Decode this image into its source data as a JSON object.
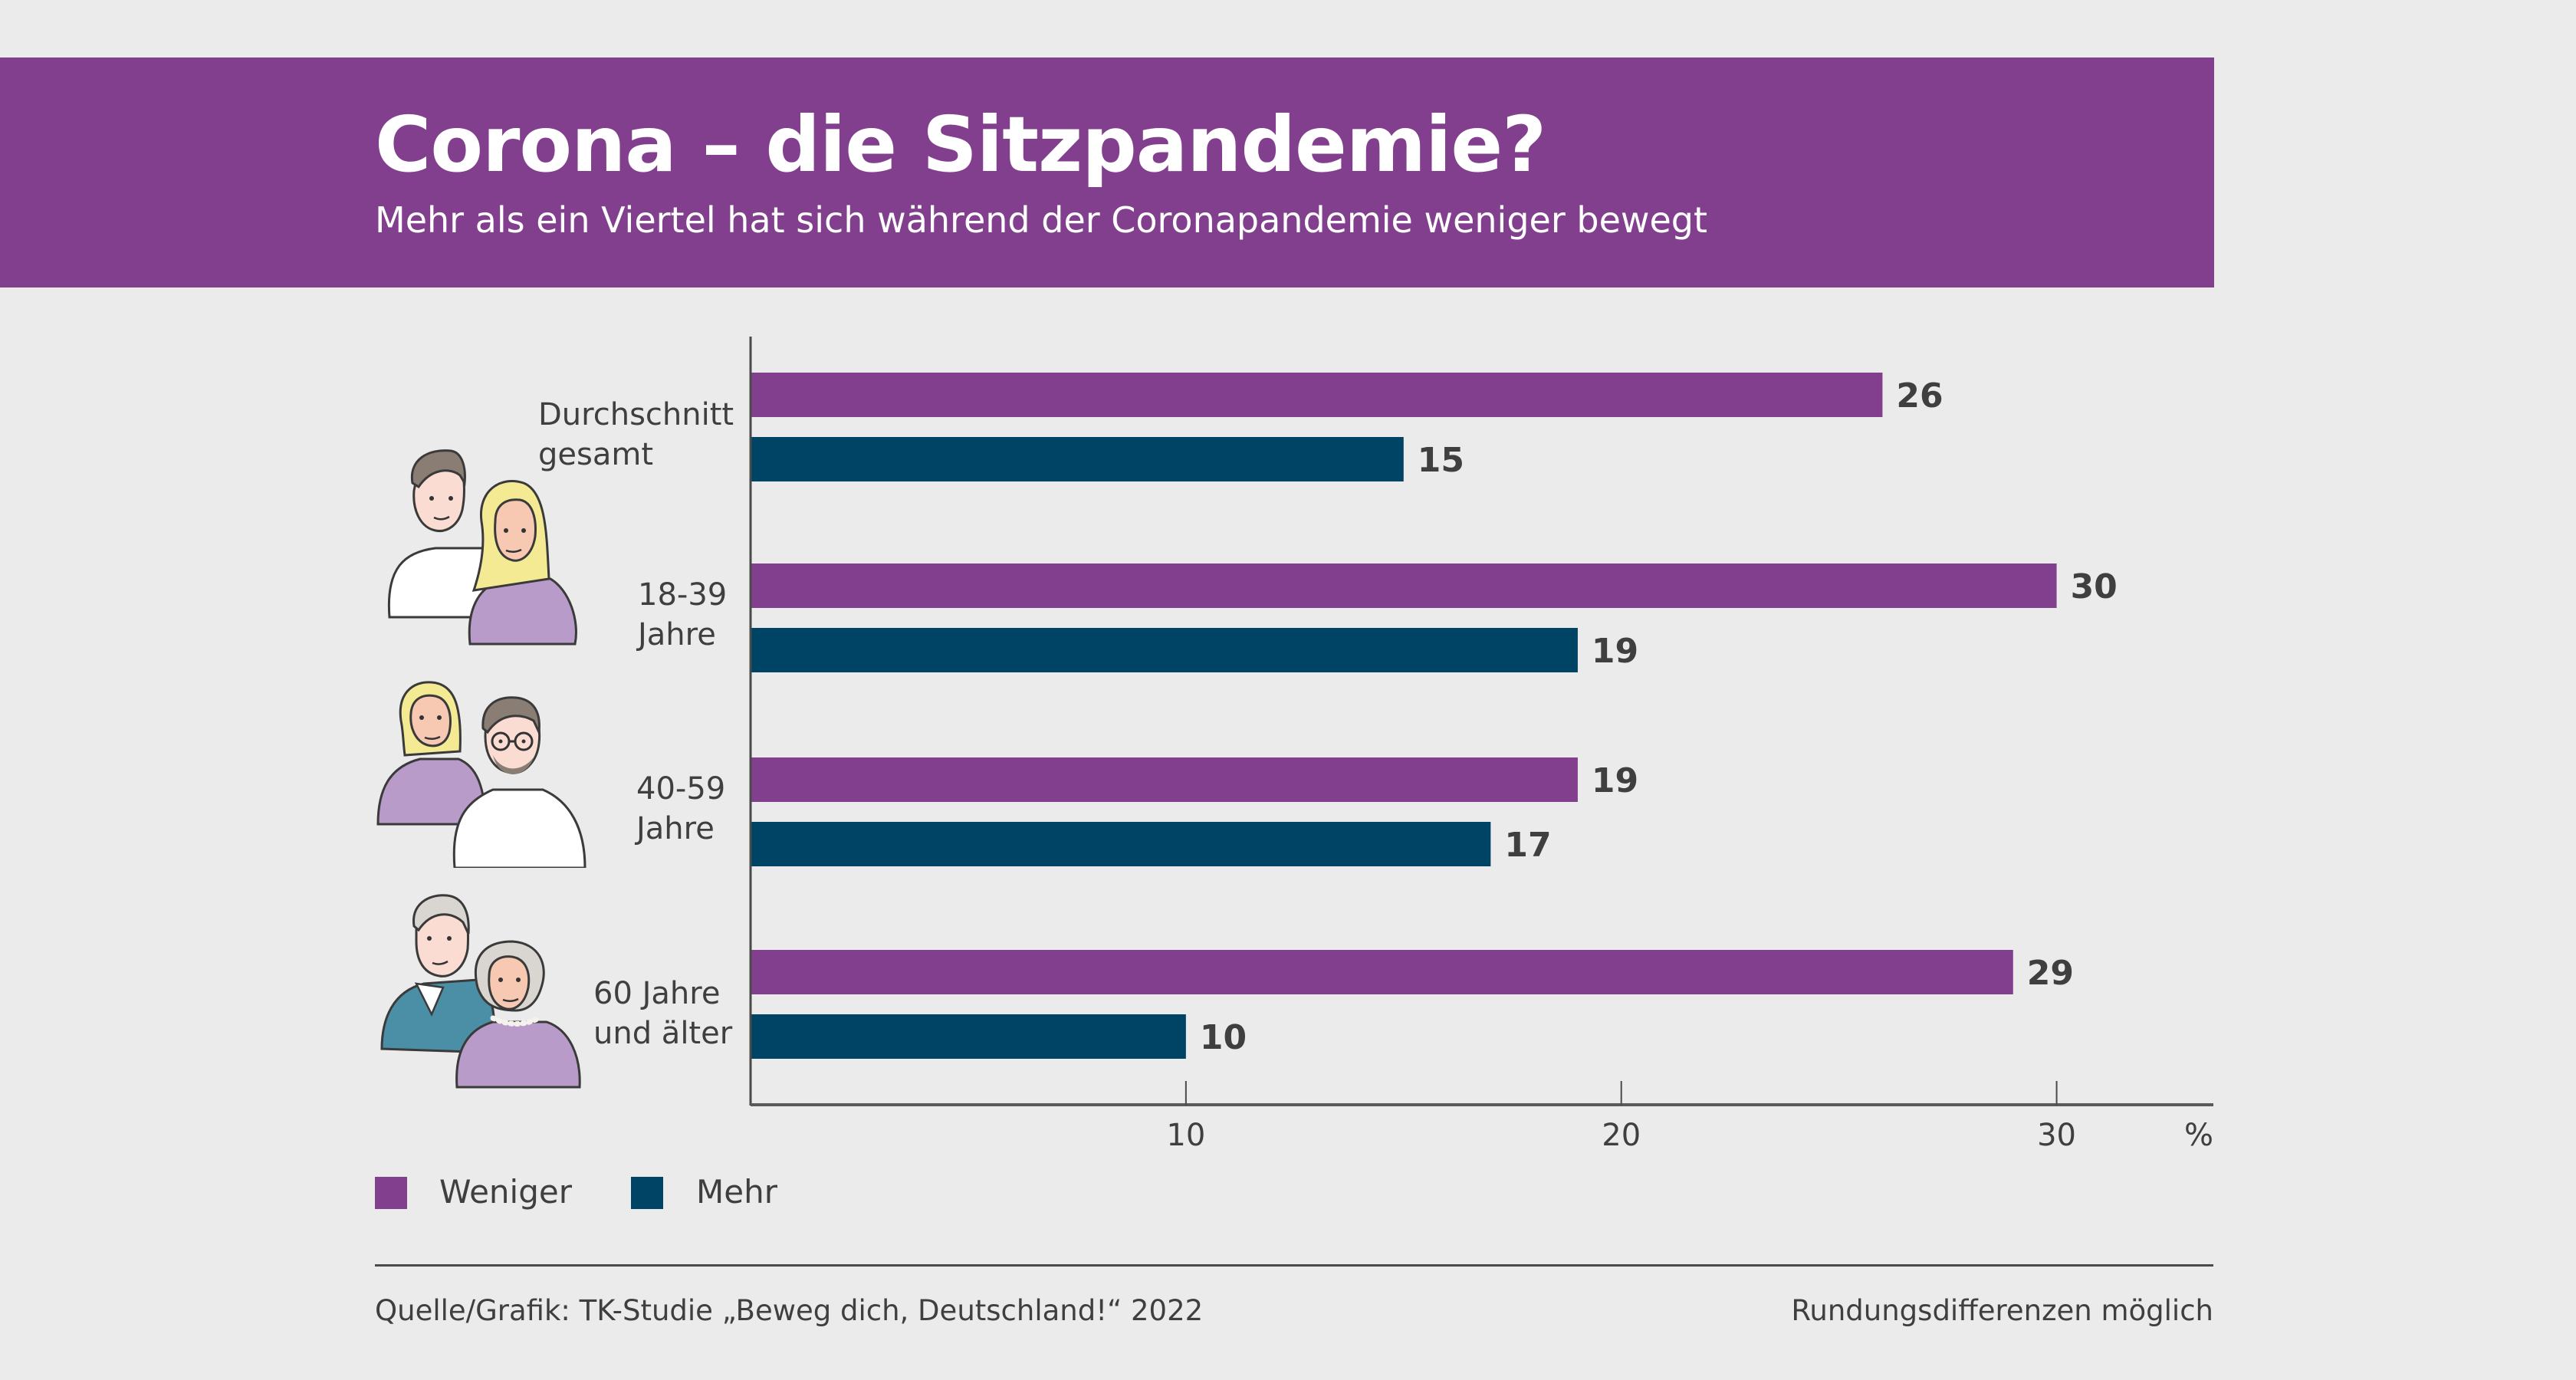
{
  "header": {
    "title": "Corona – die Sitzpandemie?",
    "subtitle": "Mehr als ein Viertel hat sich während der Coronapandemie weniger bewegt"
  },
  "colors": {
    "header_bg": "#823f8e",
    "weniger": "#823f8e",
    "mehr": "#004465",
    "background": "#ebebeb",
    "text": "#3f3f3f"
  },
  "chart_data": {
    "type": "bar",
    "orientation": "horizontal",
    "title": "Corona – die Sitzpandemie?",
    "subtitle": "Mehr als ein Viertel hat sich während der Coronapandemie weniger bewegt",
    "categories": [
      [
        "Durchschnitt",
        "gesamt"
      ],
      [
        "18-39",
        "Jahre"
      ],
      [
        "40-59",
        "Jahre"
      ],
      [
        "60 Jahre",
        "und älter"
      ]
    ],
    "series": [
      {
        "name": "Weniger",
        "color": "#823f8e",
        "values": [
          26,
          30,
          19,
          29
        ]
      },
      {
        "name": "Mehr",
        "color": "#004465",
        "values": [
          15,
          19,
          17,
          10
        ]
      }
    ],
    "xlabel": "",
    "ylabel": "",
    "unit_label": "%",
    "xlim": [
      0,
      33.6
    ],
    "xticks": [
      10,
      20,
      30
    ],
    "grid": false,
    "data_labels": true,
    "legend_position": "bottom-left"
  },
  "illustrations": [
    {
      "name": "young-couple-illustration",
      "description": "young man in white shirt and blonde woman in purple top"
    },
    {
      "name": "middle-aged-couple-illustration",
      "description": "blonde woman in purple cardigan and bearded man with glasses in white shirt"
    },
    {
      "name": "senior-couple-illustration",
      "description": "grey-haired man in teal vest and grey-haired woman in purple sweater with pearl necklace"
    }
  ],
  "legend": [
    {
      "label": "Weniger",
      "color": "#823f8e"
    },
    {
      "label": "Mehr",
      "color": "#004465"
    }
  ],
  "footer": {
    "source": "Quelle/Grafik: TK-Studie „Beweg dich, Deutschland!“ 2022",
    "note": "Rundungsdifferenzen möglich"
  }
}
